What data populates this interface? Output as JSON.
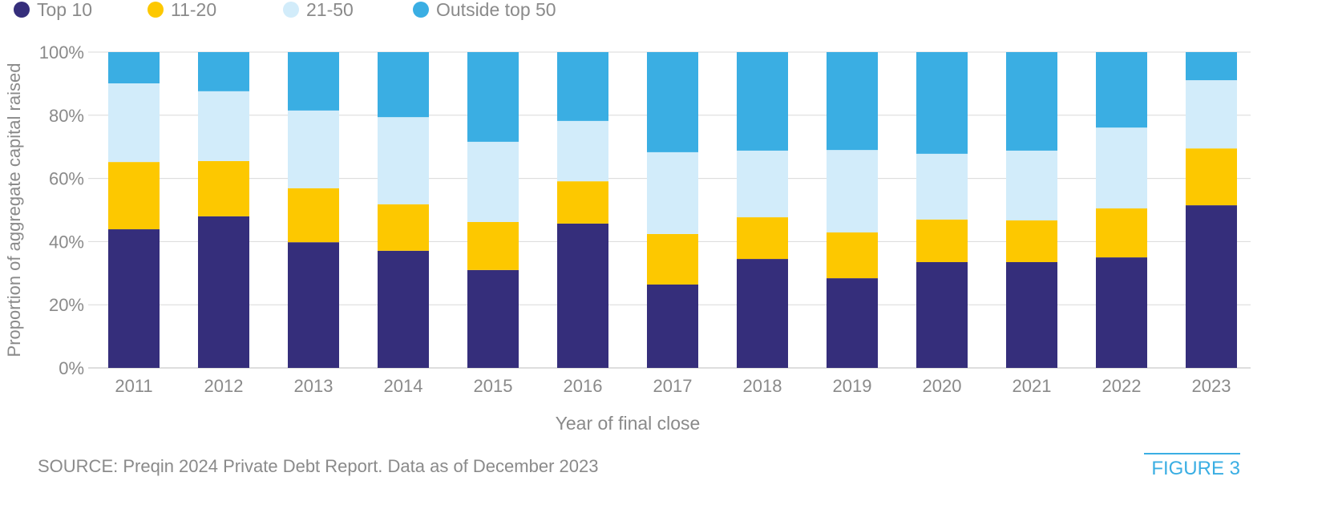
{
  "chart_data": {
    "type": "bar",
    "stacked": true,
    "title": "",
    "xlabel": "Year of final close",
    "ylabel": "Proportion of aggregate capital raised",
    "ylim": [
      0,
      100
    ],
    "yticks": [
      "0%",
      "20%",
      "40%",
      "60%",
      "80%",
      "100%"
    ],
    "grid": true,
    "legend_position": "top-left",
    "categories": [
      "2011",
      "2012",
      "2013",
      "2014",
      "2015",
      "2016",
      "2017",
      "2018",
      "2019",
      "2020",
      "2021",
      "2022",
      "2023"
    ],
    "series": [
      {
        "name": "Top 10",
        "color": "#352e7b",
        "values": [
          43.9,
          48.0,
          39.8,
          37.1,
          31.0,
          45.7,
          26.4,
          34.5,
          28.4,
          33.5,
          33.5,
          35.0,
          51.5
        ]
      },
      {
        "name": "11-20",
        "color": "#fdc800",
        "values": [
          21.3,
          17.5,
          17.1,
          14.7,
          15.2,
          13.4,
          16.0,
          13.2,
          14.5,
          13.5,
          13.2,
          15.5,
          18.0
        ]
      },
      {
        "name": "21-50",
        "color": "#d2ecfa",
        "values": [
          24.9,
          22.1,
          24.6,
          27.6,
          25.4,
          19.1,
          25.9,
          21.1,
          26.1,
          20.8,
          22.1,
          25.6,
          21.6
        ]
      },
      {
        "name": "Outside top 50",
        "color": "#3aaee3",
        "values": [
          9.9,
          12.4,
          18.5,
          20.6,
          28.4,
          21.8,
          31.7,
          31.2,
          31.0,
          32.2,
          31.2,
          23.9,
          8.9
        ]
      }
    ]
  },
  "footer": {
    "source": "SOURCE: Preqin 2024 Private Debt Report. Data as of December 2023",
    "figure_label": "FIGURE 3"
  },
  "colors": {
    "text": "#8a8a8a",
    "accent": "#3aaee3",
    "grid": "#d9d9d9"
  }
}
